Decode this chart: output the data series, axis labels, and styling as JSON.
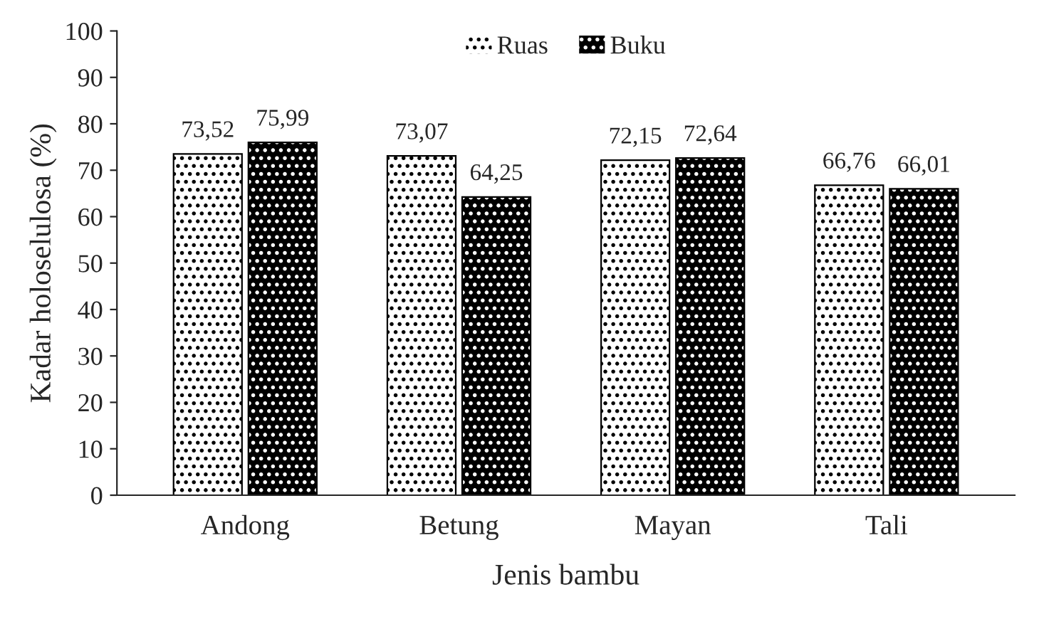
{
  "chart_data": {
    "type": "bar",
    "xlabel": "Jenis bambu",
    "ylabel": "Kadar holoselulosa (%)",
    "categories": [
      "Andong",
      "Betung",
      "Mayan",
      "Tali"
    ],
    "series": [
      {
        "name": "Ruas",
        "color": "#ffffff",
        "values": [
          73.52,
          73.07,
          72.15,
          66.76
        ],
        "value_labels": [
          "73,52",
          "73,07",
          "72,15",
          "66,76"
        ]
      },
      {
        "name": "Buku",
        "color": "#000000",
        "values": [
          75.99,
          64.25,
          72.64,
          66.01
        ],
        "value_labels": [
          "75,99",
          "64,25",
          "72,64",
          "66,01"
        ]
      }
    ],
    "ylim": [
      0,
      100
    ],
    "yticks": [
      0,
      10,
      20,
      30,
      40,
      50,
      60,
      70,
      80,
      90,
      100
    ],
    "grid": false,
    "legend": "top"
  }
}
